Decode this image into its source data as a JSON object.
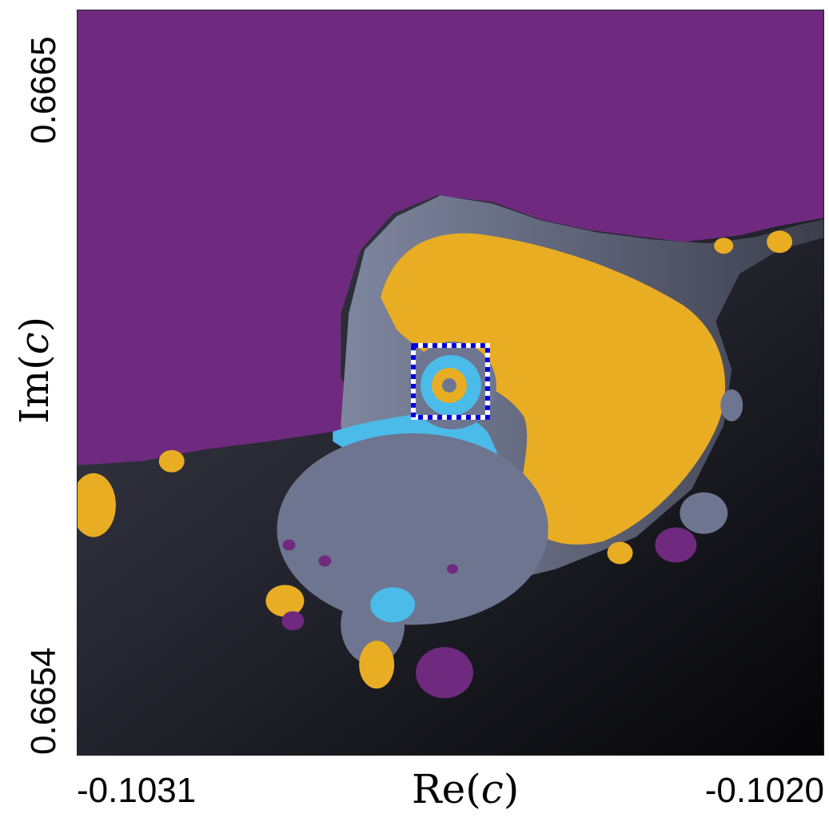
{
  "figure": {
    "x_axis": {
      "label_prefix": "Re(",
      "label_var": "c",
      "label_suffix": ")",
      "tick_left": "-0.1031",
      "tick_right": "-0.1020"
    },
    "y_axis": {
      "label_prefix": "Im(",
      "label_var": "c",
      "label_suffix": ")",
      "tick_top": "0.6665",
      "tick_bottom": "0.6654"
    },
    "colors": {
      "background_region": "#6f2a7f",
      "escape_dark": "#1d1e26",
      "escape_mid": "#4a4d5c",
      "gray_band": "#6f7890",
      "gold": "#e9ad24",
      "cyan": "#4bbbe9",
      "zoom_box_blue": "#0000dd",
      "zoom_box_white": "#ffffff"
    }
  }
}
